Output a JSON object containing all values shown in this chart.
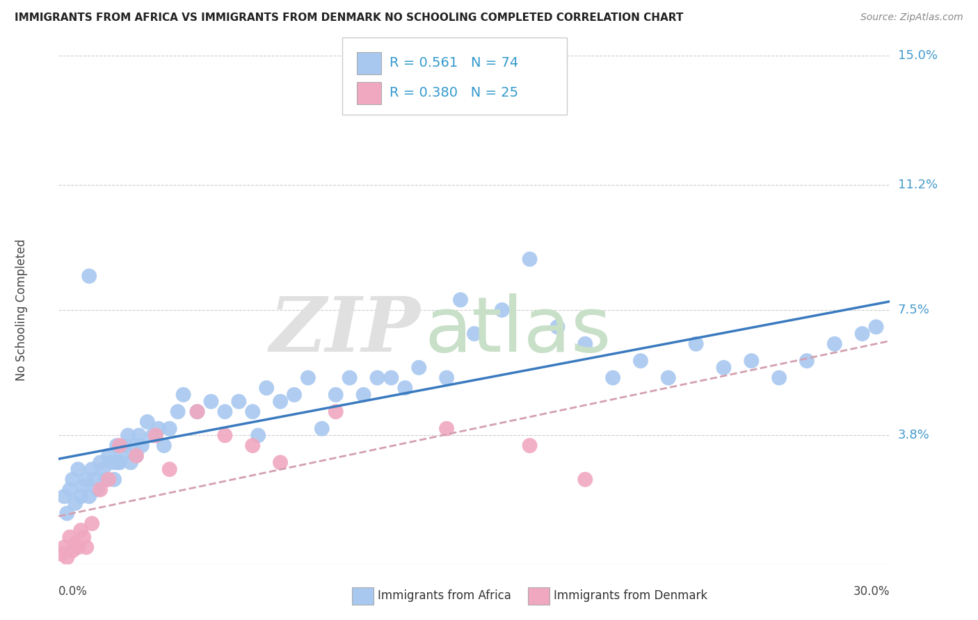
{
  "title": "IMMIGRANTS FROM AFRICA VS IMMIGRANTS FROM DENMARK NO SCHOOLING COMPLETED CORRELATION CHART",
  "source": "Source: ZipAtlas.com",
  "ylabel": "No Schooling Completed",
  "ytick_labels": [
    "3.8%",
    "7.5%",
    "11.2%",
    "15.0%"
  ],
  "ytick_vals": [
    3.8,
    7.5,
    11.2,
    15.0
  ],
  "xlim": [
    0.0,
    30.0
  ],
  "ylim": [
    0.0,
    15.0
  ],
  "legend_africa_R": "0.561",
  "legend_africa_N": "74",
  "legend_denmark_R": "0.380",
  "legend_denmark_N": "25",
  "africa_color": "#a8c8f0",
  "denmark_color": "#f0a8c0",
  "africa_line_color": "#3a7abf",
  "denmark_line_color": "#d4a0b0",
  "africa_scatter_x": [
    0.2,
    0.3,
    0.4,
    0.5,
    0.6,
    0.7,
    0.8,
    0.9,
    1.0,
    1.1,
    1.2,
    1.3,
    1.4,
    1.5,
    1.6,
    1.7,
    1.8,
    1.9,
    2.0,
    2.1,
    2.2,
    2.3,
    2.4,
    2.5,
    2.6,
    2.7,
    2.8,
    2.9,
    3.0,
    3.2,
    3.4,
    3.6,
    3.8,
    4.0,
    4.5,
    5.0,
    5.5,
    6.0,
    6.5,
    7.0,
    7.5,
    8.0,
    8.5,
    9.0,
    9.5,
    10.0,
    10.5,
    11.0,
    11.5,
    12.0,
    12.5,
    13.0,
    14.0,
    15.0,
    16.0,
    17.0,
    18.0,
    19.0,
    20.0,
    21.0,
    22.0,
    23.0,
    24.0,
    25.0,
    26.0,
    27.0,
    28.0,
    29.0,
    29.5,
    14.5,
    7.2,
    4.3,
    2.1,
    1.1
  ],
  "africa_scatter_y": [
    2.0,
    1.5,
    2.2,
    2.5,
    1.8,
    2.8,
    2.0,
    2.3,
    2.5,
    2.0,
    2.8,
    2.5,
    2.2,
    3.0,
    2.8,
    2.5,
    3.2,
    3.0,
    2.5,
    3.5,
    3.0,
    3.2,
    3.5,
    3.8,
    3.0,
    3.5,
    3.2,
    3.8,
    3.5,
    4.2,
    3.8,
    4.0,
    3.5,
    4.0,
    5.0,
    4.5,
    4.8,
    4.5,
    4.8,
    4.5,
    5.2,
    4.8,
    5.0,
    5.5,
    4.0,
    5.0,
    5.5,
    5.0,
    5.5,
    5.5,
    5.2,
    5.8,
    5.5,
    6.8,
    7.5,
    9.0,
    7.0,
    6.5,
    5.5,
    6.0,
    5.5,
    6.5,
    5.8,
    6.0,
    5.5,
    6.0,
    6.5,
    6.8,
    7.0,
    7.8,
    3.8,
    4.5,
    3.0,
    8.5
  ],
  "denmark_scatter_x": [
    0.1,
    0.2,
    0.3,
    0.4,
    0.5,
    0.6,
    0.7,
    0.8,
    0.9,
    1.0,
    1.2,
    1.5,
    1.8,
    2.2,
    2.8,
    3.5,
    4.0,
    5.0,
    6.0,
    7.0,
    8.0,
    10.0,
    14.0,
    17.0,
    19.0
  ],
  "denmark_scatter_y": [
    0.3,
    0.5,
    0.2,
    0.8,
    0.4,
    0.6,
    0.5,
    1.0,
    0.8,
    0.5,
    1.2,
    2.2,
    2.5,
    3.5,
    3.2,
    3.8,
    2.8,
    4.5,
    3.8,
    3.5,
    3.0,
    4.5,
    4.0,
    3.5,
    2.5
  ]
}
